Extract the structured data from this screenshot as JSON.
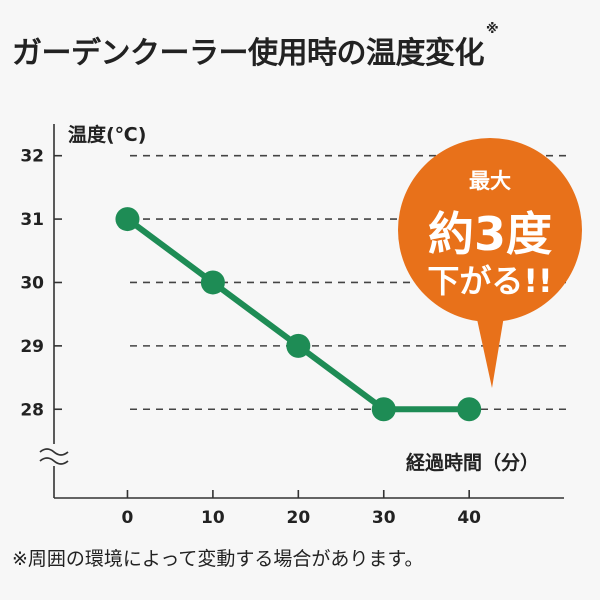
{
  "title": "ガーデンクーラー使用時の温度変化",
  "title_mark": "※",
  "footnote": "※周囲の環境によって変動する場合があります。",
  "colors": {
    "line": "#1e8c55",
    "callout": "#e8711a",
    "grid": "#444444",
    "axis": "#333333"
  },
  "callout": {
    "line1": "最大",
    "line2": "約3度",
    "line3": "下がる!!"
  },
  "chart_data": {
    "type": "line",
    "x": [
      0,
      10,
      20,
      30,
      40
    ],
    "values": [
      31,
      30,
      29,
      28,
      28
    ],
    "xlabel": "経過時間（分）",
    "ylabel": "温度(℃)",
    "x_ticks": [
      "0",
      "10",
      "20",
      "30",
      "40"
    ],
    "y_ticks": [
      "32",
      "31",
      "30",
      "29",
      "28"
    ],
    "y_tick_values": [
      32,
      31,
      30,
      29,
      28
    ],
    "xlim": [
      -8.6,
      51.1
    ],
    "ylim": [
      26.6,
      32.5
    ],
    "y_axis_break": true,
    "grid": "horizontal-dashed"
  }
}
